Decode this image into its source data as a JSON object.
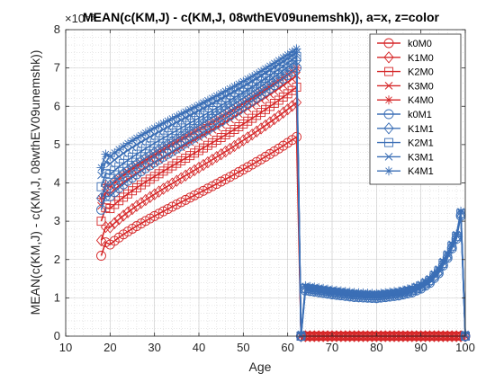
{
  "chart_data": {
    "type": "line",
    "title": "MEAN(c(KM,J) - c(KM,J, 08wthEV09unemshk)), a=x, z=color",
    "xlabel": "Age",
    "ylabel": "MEAN(c(KM,J) - c(KM,J, 08wthEV09unemshk))",
    "exponent_label": "×10⁻³",
    "xlim": [
      10,
      100
    ],
    "ylim": [
      0,
      8
    ],
    "xticks": [
      10,
      20,
      30,
      40,
      50,
      60,
      70,
      80,
      90,
      100
    ],
    "yticks": [
      0,
      1,
      2,
      3,
      4,
      5,
      6,
      7,
      8
    ],
    "grid": "minor-dotted",
    "legend_position": "top-right",
    "ages": {
      "start": 18,
      "retire": 63,
      "end": 100
    },
    "series": [
      {
        "name": "k0M0",
        "marker": "o",
        "color": "#d62728",
        "y_start": 2.1,
        "y_peak": 5.2,
        "after_retire": "zero"
      },
      {
        "name": "K1M0",
        "marker": "d",
        "color": "#d62728",
        "y_start": 2.5,
        "y_peak": 6.1,
        "after_retire": "zero"
      },
      {
        "name": "K2M0",
        "marker": "s",
        "color": "#d62728",
        "y_start": 3.0,
        "y_peak": 6.5,
        "after_retire": "zero"
      },
      {
        "name": "K3M0",
        "marker": "x",
        "color": "#d62728",
        "y_start": 3.4,
        "y_peak": 6.8,
        "after_retire": "zero"
      },
      {
        "name": "K4M0",
        "marker": "*",
        "color": "#d62728",
        "y_start": 3.6,
        "y_peak": 7.0,
        "after_retire": "zero"
      },
      {
        "name": "k0M1",
        "marker": "o",
        "color": "#3b6fb6",
        "y_start": 3.3,
        "y_peak": 7.0,
        "after_retire": "retired"
      },
      {
        "name": "K1M1",
        "marker": "d",
        "color": "#3b6fb6",
        "y_start": 3.6,
        "y_peak": 7.2,
        "after_retire": "retired"
      },
      {
        "name": "K2M1",
        "marker": "s",
        "color": "#3b6fb6",
        "y_start": 3.9,
        "y_peak": 7.3,
        "after_retire": "retired"
      },
      {
        "name": "K3M1",
        "marker": "x",
        "color": "#3b6fb6",
        "y_start": 4.2,
        "y_peak": 7.4,
        "after_retire": "retired"
      },
      {
        "name": "K4M1",
        "marker": "*",
        "color": "#3b6fb6",
        "y_start": 4.4,
        "y_peak": 7.5,
        "after_retire": "retired"
      }
    ],
    "retired_profile": {
      "ages": [
        64,
        66,
        70,
        75,
        80,
        85,
        88,
        90,
        92,
        94,
        96,
        98,
        99,
        100
      ],
      "values": [
        1.25,
        1.22,
        1.15,
        1.08,
        1.05,
        1.12,
        1.2,
        1.3,
        1.45,
        1.7,
        2.1,
        2.6,
        3.2,
        0
      ]
    }
  }
}
